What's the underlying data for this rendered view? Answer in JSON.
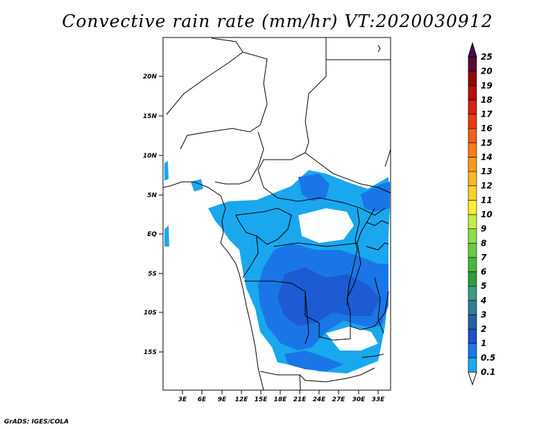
{
  "title": "Convective rain rate (mm/hr) VT:2020030912",
  "credit": "GrADS: IGES/COLA",
  "map": {
    "lon_range": [
      0,
      35
    ],
    "lat_range": [
      -19,
      24
    ],
    "lat_ticks": [
      "20N",
      "15N",
      "10N",
      "5N",
      "EQ",
      "5S",
      "10S",
      "15S"
    ],
    "lon_ticks": [
      "3E",
      "6E",
      "9E",
      "12E",
      "15E",
      "18E",
      "21E",
      "24E",
      "27E",
      "30E",
      "33E"
    ]
  },
  "colorbar": {
    "labels": [
      "0.1",
      "0.5",
      "1",
      "2",
      "3",
      "4",
      "5",
      "6",
      "7",
      "8",
      "9",
      "10",
      "11",
      "12",
      "13",
      "14",
      "15",
      "16",
      "17",
      "18",
      "19",
      "20",
      "25"
    ],
    "colors": [
      "#19a7ee",
      "#1a76e6",
      "#1e50c7",
      "#235fa5",
      "#2e7d93",
      "#3b9b82",
      "#2c9a3c",
      "#49b53b",
      "#69cc42",
      "#8fdd44",
      "#c8ec46",
      "#ffee33",
      "#fad12c",
      "#f9b728",
      "#f79a1e",
      "#f57b18",
      "#f25d15",
      "#e63a12",
      "#d4210f",
      "#b50d0d",
      "#8c0a0a",
      "#5a0a30",
      "#4a0857"
    ]
  }
}
